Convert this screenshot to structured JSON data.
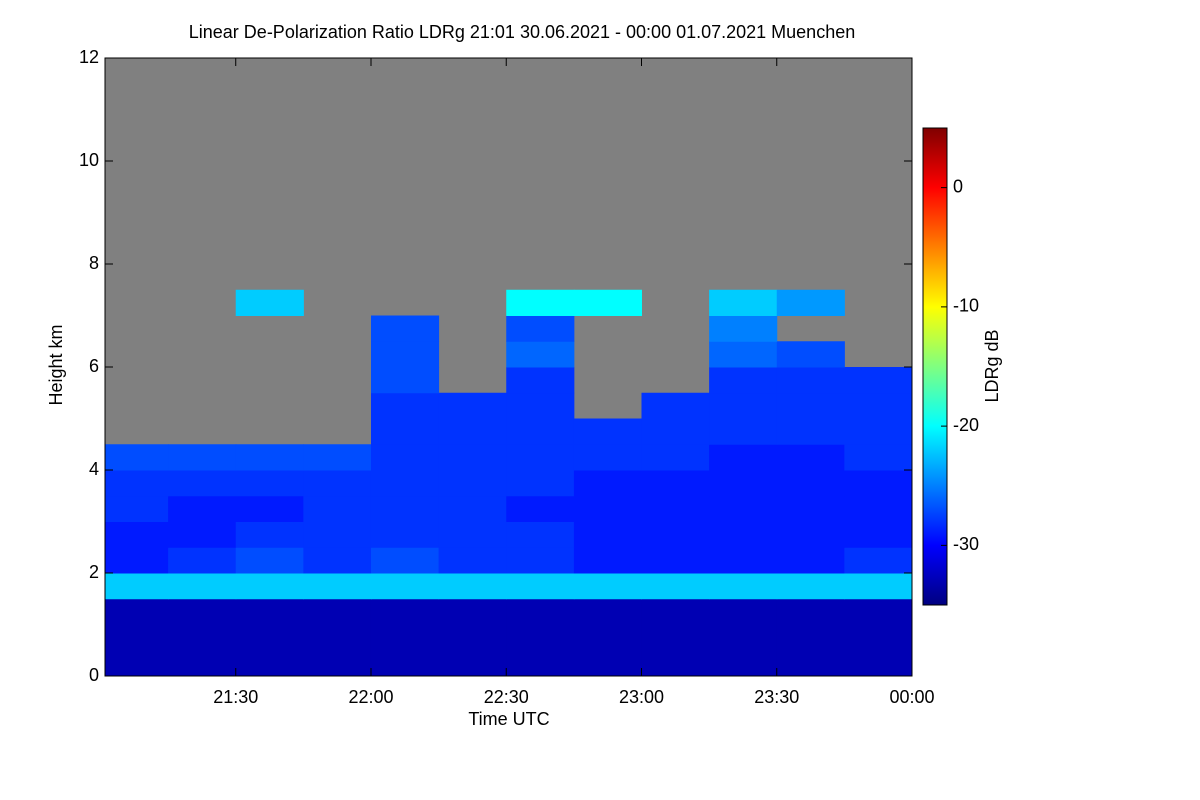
{
  "chart_data": {
    "type": "heatmap",
    "title": "Linear De-Polarization Ratio LDRg   21:01 30.06.2021 - 00:00 01.07.2021 Muenchen",
    "xlabel": "Time UTC",
    "ylabel": "Height km",
    "colorbar_label": "LDRg dB",
    "xlim": [
      21.0167,
      24
    ],
    "ylim": [
      0,
      12
    ],
    "zlim": [
      -35,
      5
    ],
    "xticks": [
      {
        "value": 21.5,
        "label": "21:30"
      },
      {
        "value": 22,
        "label": "22:00"
      },
      {
        "value": 22.5,
        "label": "22:30"
      },
      {
        "value": 23,
        "label": "23:00"
      },
      {
        "value": 23.5,
        "label": "23:30"
      },
      {
        "value": 24,
        "label": "00:00"
      }
    ],
    "yticks": [
      0,
      2,
      4,
      6,
      8,
      10,
      12
    ],
    "zticks": [
      -30,
      -20,
      -10,
      0
    ],
    "colormap": "jet",
    "missing_color": "#808080",
    "xbins": [
      21.0167,
      21.25,
      21.5,
      21.75,
      22,
      22.25,
      22.5,
      22.75,
      23,
      23.25,
      23.5,
      23.75,
      24
    ],
    "ybins": [
      0,
      0.5,
      1,
      1.5,
      2,
      2.5,
      3,
      3.5,
      4,
      4.5,
      5,
      5.5,
      6,
      6.5,
      7,
      7.5,
      8,
      8.5,
      9,
      9.5,
      10,
      10.5,
      11,
      11.5,
      12
    ],
    "values": [
      [
        -33,
        -33,
        -33,
        -33,
        -33,
        -33,
        -33,
        -33,
        -33,
        -33,
        -33,
        -33
      ],
      [
        -33,
        -33,
        -33,
        -33,
        -33,
        -33,
        -33,
        -33,
        -33,
        -33,
        -33,
        -33
      ],
      [
        -33,
        -33,
        -33,
        -33,
        -33,
        -33,
        -33,
        -33,
        -33,
        -33,
        -33,
        -33
      ],
      [
        -22,
        -22,
        -22,
        -22,
        -22,
        -22,
        -22,
        -22,
        -22,
        -22,
        -22,
        -22
      ],
      [
        -29,
        -28,
        -27,
        -28,
        -27,
        -28,
        -28,
        -29,
        -29,
        -29,
        -29,
        -28
      ],
      [
        -29,
        -29,
        -28,
        -28,
        -28,
        -28,
        -28,
        -29,
        -29,
        -29,
        -29,
        -29
      ],
      [
        -28,
        -29,
        -29,
        -28,
        -28,
        -28,
        -29,
        -29,
        -29,
        -29,
        -29,
        -29
      ],
      [
        -28,
        -28,
        -28,
        -28,
        -28,
        -28,
        -28,
        -29,
        -29,
        -29,
        -29,
        -29
      ],
      [
        -27,
        -27,
        -27,
        -27,
        -28,
        -28,
        -28,
        -28,
        -28,
        -29,
        -29,
        -28
      ],
      [
        null,
        null,
        null,
        null,
        -28,
        -28,
        -28,
        -28,
        -28,
        -28,
        -28,
        -28
      ],
      [
        null,
        null,
        null,
        null,
        -28,
        -28,
        -28,
        null,
        -28,
        -28,
        -28,
        -28
      ],
      [
        null,
        null,
        null,
        null,
        -27,
        null,
        -28,
        null,
        null,
        -28,
        -28,
        -28
      ],
      [
        null,
        null,
        null,
        null,
        -27,
        null,
        -26,
        null,
        null,
        -26,
        -27,
        null
      ],
      [
        null,
        null,
        null,
        null,
        -27,
        null,
        -27,
        null,
        null,
        -25,
        null,
        null
      ],
      [
        null,
        null,
        -22,
        null,
        null,
        null,
        -20,
        -20,
        null,
        -22,
        -24,
        null
      ],
      [
        null,
        null,
        null,
        null,
        null,
        null,
        null,
        null,
        null,
        null,
        null,
        null
      ],
      [
        null,
        null,
        null,
        null,
        null,
        null,
        null,
        null,
        null,
        null,
        null,
        null
      ],
      [
        null,
        null,
        null,
        null,
        null,
        null,
        null,
        null,
        null,
        null,
        null,
        null
      ],
      [
        null,
        null,
        null,
        null,
        null,
        null,
        null,
        null,
        null,
        null,
        null,
        null
      ],
      [
        null,
        null,
        null,
        null,
        null,
        null,
        null,
        null,
        null,
        null,
        null,
        null
      ],
      [
        null,
        null,
        null,
        null,
        null,
        null,
        null,
        null,
        null,
        null,
        null,
        null
      ],
      [
        null,
        null,
        null,
        null,
        null,
        null,
        null,
        null,
        null,
        null,
        null,
        null
      ],
      [
        null,
        null,
        null,
        null,
        null,
        null,
        null,
        null,
        null,
        null,
        null,
        null
      ],
      [
        null,
        null,
        null,
        null,
        null,
        null,
        null,
        null,
        null,
        null,
        null,
        null
      ]
    ]
  }
}
